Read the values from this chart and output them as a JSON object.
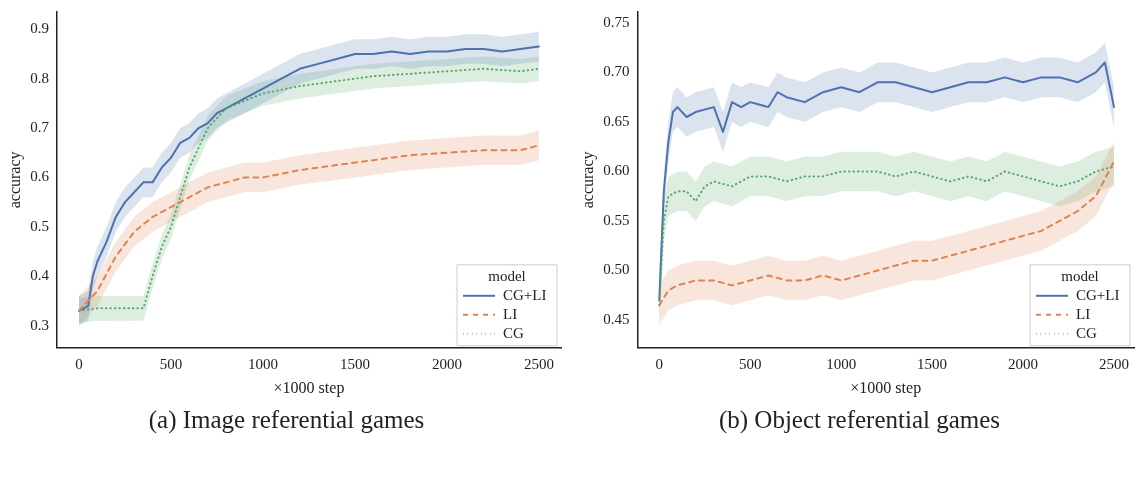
{
  "chart_data": [
    {
      "type": "line",
      "xlabel": "×1000 step",
      "ylabel": "accuracy",
      "legend_title": "model",
      "legend": "bottom right",
      "grid": false,
      "annotations": [
        "(a) Image referential games"
      ],
      "xlim": [
        -120,
        2620
      ],
      "ylim": [
        0.255,
        0.935
      ],
      "xticks": [
        0,
        500,
        1000,
        1500,
        2000,
        2500
      ],
      "yticks": [
        0.3,
        0.4,
        0.5,
        0.6,
        0.7,
        0.8,
        0.9
      ],
      "series": [
        {
          "name": "CG+LI",
          "color": "#4c72b0",
          "line_style": "solid",
          "x": [
            0,
            50,
            75,
            100,
            150,
            200,
            250,
            300,
            350,
            400,
            450,
            500,
            550,
            600,
            650,
            700,
            750,
            800,
            900,
            1000,
            1100,
            1200,
            1300,
            1400,
            1500,
            1600,
            1700,
            1800,
            1900,
            2000,
            2100,
            2200,
            2300,
            2400,
            2500
          ],
          "values": [
            0.33,
            0.34,
            0.4,
            0.43,
            0.47,
            0.52,
            0.55,
            0.57,
            0.59,
            0.59,
            0.62,
            0.64,
            0.67,
            0.68,
            0.7,
            0.71,
            0.73,
            0.74,
            0.76,
            0.78,
            0.8,
            0.82,
            0.83,
            0.84,
            0.85,
            0.85,
            0.855,
            0.85,
            0.855,
            0.855,
            0.86,
            0.86,
            0.855,
            0.86,
            0.865
          ],
          "lower": [
            0.3,
            0.31,
            0.37,
            0.4,
            0.44,
            0.49,
            0.52,
            0.54,
            0.56,
            0.56,
            0.59,
            0.61,
            0.64,
            0.65,
            0.67,
            0.68,
            0.7,
            0.71,
            0.73,
            0.75,
            0.77,
            0.79,
            0.8,
            0.81,
            0.82,
            0.82,
            0.825,
            0.82,
            0.825,
            0.825,
            0.83,
            0.83,
            0.825,
            0.83,
            0.835
          ],
          "upper": [
            0.36,
            0.37,
            0.43,
            0.46,
            0.5,
            0.55,
            0.58,
            0.6,
            0.62,
            0.62,
            0.65,
            0.67,
            0.7,
            0.71,
            0.73,
            0.74,
            0.76,
            0.77,
            0.79,
            0.81,
            0.83,
            0.85,
            0.86,
            0.87,
            0.88,
            0.88,
            0.885,
            0.88,
            0.885,
            0.885,
            0.89,
            0.89,
            0.885,
            0.89,
            0.895
          ]
        },
        {
          "name": "LI",
          "color": "#dd8452",
          "line_style": "dashed",
          "x": [
            0,
            100,
            200,
            300,
            400,
            500,
            600,
            700,
            800,
            900,
            1000,
            1200,
            1400,
            1600,
            1800,
            2000,
            2200,
            2400,
            2500
          ],
          "values": [
            0.33,
            0.37,
            0.44,
            0.49,
            0.52,
            0.54,
            0.56,
            0.58,
            0.59,
            0.6,
            0.6,
            0.615,
            0.625,
            0.635,
            0.645,
            0.65,
            0.655,
            0.655,
            0.665
          ],
          "lower": [
            0.3,
            0.34,
            0.41,
            0.46,
            0.49,
            0.51,
            0.53,
            0.55,
            0.56,
            0.57,
            0.57,
            0.585,
            0.595,
            0.605,
            0.615,
            0.62,
            0.625,
            0.625,
            0.635
          ],
          "upper": [
            0.36,
            0.4,
            0.47,
            0.52,
            0.55,
            0.57,
            0.59,
            0.61,
            0.62,
            0.63,
            0.63,
            0.645,
            0.655,
            0.665,
            0.675,
            0.68,
            0.685,
            0.685,
            0.695
          ]
        },
        {
          "name": "CG",
          "color": "#55a868",
          "line_style": "dotted",
          "x": [
            0,
            100,
            200,
            300,
            350,
            400,
            450,
            500,
            550,
            600,
            650,
            700,
            750,
            800,
            900,
            1000,
            1200,
            1400,
            1600,
            1800,
            2000,
            2200,
            2400,
            2500
          ],
          "values": [
            0.33,
            0.335,
            0.335,
            0.335,
            0.335,
            0.4,
            0.46,
            0.5,
            0.56,
            0.62,
            0.66,
            0.7,
            0.72,
            0.74,
            0.755,
            0.77,
            0.785,
            0.795,
            0.805,
            0.81,
            0.815,
            0.82,
            0.815,
            0.82
          ],
          "lower": [
            0.305,
            0.31,
            0.31,
            0.31,
            0.31,
            0.375,
            0.435,
            0.475,
            0.535,
            0.595,
            0.635,
            0.675,
            0.695,
            0.715,
            0.73,
            0.745,
            0.76,
            0.77,
            0.78,
            0.785,
            0.79,
            0.795,
            0.79,
            0.795
          ],
          "upper": [
            0.355,
            0.36,
            0.36,
            0.36,
            0.36,
            0.425,
            0.485,
            0.525,
            0.585,
            0.645,
            0.685,
            0.725,
            0.745,
            0.765,
            0.78,
            0.795,
            0.81,
            0.82,
            0.83,
            0.835,
            0.84,
            0.845,
            0.84,
            0.845
          ]
        }
      ]
    },
    {
      "type": "line",
      "xlabel": "×1000 step",
      "ylabel": "accuracy",
      "legend_title": "model",
      "legend": "bottom right",
      "grid": false,
      "annotations": [
        "(b) Object referential games"
      ],
      "xlim": [
        -120,
        2610
      ],
      "ylim": [
        0.422,
        0.761
      ],
      "xticks": [
        0,
        500,
        1000,
        1500,
        2000,
        2500
      ],
      "yticks": [
        0.45,
        {
          "value": 0.5,
          "label": "0.50"
        },
        0.55,
        {
          "value": 0.6,
          "label": "0.60"
        },
        0.65,
        {
          "value": 0.7,
          "label": "0.70"
        },
        0.75
      ],
      "series": [
        {
          "name": "CG+LI",
          "color": "#4c72b0",
          "line_style": "solid",
          "x": [
            0,
            25,
            50,
            75,
            100,
            150,
            200,
            300,
            350,
            400,
            450,
            500,
            600,
            650,
            700,
            800,
            900,
            1000,
            1100,
            1200,
            1300,
            1400,
            1500,
            1600,
            1700,
            1800,
            1900,
            2000,
            2100,
            2200,
            2300,
            2400,
            2450,
            2500
          ],
          "values": [
            0.47,
            0.58,
            0.63,
            0.66,
            0.665,
            0.655,
            0.66,
            0.665,
            0.64,
            0.67,
            0.665,
            0.67,
            0.665,
            0.68,
            0.675,
            0.67,
            0.68,
            0.685,
            0.68,
            0.69,
            0.69,
            0.685,
            0.68,
            0.685,
            0.69,
            0.69,
            0.695,
            0.69,
            0.695,
            0.695,
            0.69,
            0.7,
            0.71,
            0.665
          ],
          "lower": [
            0.45,
            0.56,
            0.61,
            0.64,
            0.645,
            0.635,
            0.64,
            0.645,
            0.62,
            0.65,
            0.645,
            0.65,
            0.645,
            0.66,
            0.655,
            0.65,
            0.66,
            0.665,
            0.66,
            0.67,
            0.67,
            0.665,
            0.66,
            0.665,
            0.67,
            0.67,
            0.675,
            0.67,
            0.675,
            0.675,
            0.67,
            0.68,
            0.69,
            0.645
          ],
          "upper": [
            0.49,
            0.6,
            0.65,
            0.68,
            0.685,
            0.675,
            0.68,
            0.685,
            0.66,
            0.69,
            0.685,
            0.69,
            0.685,
            0.7,
            0.695,
            0.69,
            0.7,
            0.705,
            0.7,
            0.71,
            0.71,
            0.705,
            0.7,
            0.705,
            0.71,
            0.71,
            0.715,
            0.71,
            0.715,
            0.715,
            0.71,
            0.72,
            0.73,
            0.685
          ]
        },
        {
          "name": "LI",
          "color": "#dd8452",
          "line_style": "dashed",
          "x": [
            0,
            50,
            100,
            200,
            300,
            400,
            500,
            600,
            700,
            800,
            900,
            1000,
            1100,
            1200,
            1300,
            1400,
            1500,
            1600,
            1700,
            1800,
            1900,
            2000,
            2100,
            2200,
            2300,
            2400,
            2500
          ],
          "values": [
            0.465,
            0.48,
            0.485,
            0.49,
            0.49,
            0.485,
            0.49,
            0.495,
            0.49,
            0.49,
            0.495,
            0.49,
            0.495,
            0.5,
            0.505,
            0.51,
            0.51,
            0.515,
            0.52,
            0.525,
            0.53,
            0.535,
            0.54,
            0.55,
            0.56,
            0.575,
            0.61
          ],
          "lower": [
            0.445,
            0.46,
            0.465,
            0.47,
            0.47,
            0.465,
            0.47,
            0.475,
            0.47,
            0.47,
            0.475,
            0.47,
            0.475,
            0.48,
            0.485,
            0.49,
            0.49,
            0.495,
            0.5,
            0.505,
            0.51,
            0.515,
            0.52,
            0.53,
            0.54,
            0.555,
            0.59
          ],
          "upper": [
            0.485,
            0.5,
            0.505,
            0.51,
            0.51,
            0.505,
            0.51,
            0.515,
            0.51,
            0.51,
            0.515,
            0.51,
            0.515,
            0.52,
            0.525,
            0.53,
            0.53,
            0.535,
            0.54,
            0.545,
            0.55,
            0.555,
            0.56,
            0.57,
            0.58,
            0.595,
            0.63
          ]
        },
        {
          "name": "CG",
          "color": "#55a868",
          "line_style": "dotted",
          "x": [
            0,
            25,
            50,
            100,
            150,
            200,
            250,
            300,
            400,
            500,
            600,
            700,
            800,
            900,
            1000,
            1100,
            1200,
            1300,
            1400,
            1500,
            1600,
            1700,
            1800,
            1900,
            2000,
            2100,
            2200,
            2300,
            2400,
            2500
          ],
          "values": [
            0.465,
            0.55,
            0.575,
            0.58,
            0.58,
            0.57,
            0.585,
            0.59,
            0.585,
            0.595,
            0.595,
            0.59,
            0.595,
            0.595,
            0.6,
            0.6,
            0.6,
            0.595,
            0.6,
            0.595,
            0.59,
            0.595,
            0.59,
            0.6,
            0.595,
            0.59,
            0.585,
            0.59,
            0.6,
            0.605
          ],
          "lower": [
            0.445,
            0.53,
            0.555,
            0.56,
            0.56,
            0.55,
            0.565,
            0.57,
            0.565,
            0.575,
            0.575,
            0.57,
            0.575,
            0.575,
            0.58,
            0.58,
            0.58,
            0.575,
            0.58,
            0.575,
            0.57,
            0.575,
            0.57,
            0.58,
            0.575,
            0.57,
            0.565,
            0.57,
            0.58,
            0.585
          ],
          "upper": [
            0.485,
            0.57,
            0.595,
            0.6,
            0.6,
            0.59,
            0.605,
            0.61,
            0.605,
            0.615,
            0.615,
            0.61,
            0.615,
            0.615,
            0.62,
            0.62,
            0.62,
            0.615,
            0.62,
            0.615,
            0.61,
            0.615,
            0.61,
            0.62,
            0.615,
            0.61,
            0.605,
            0.61,
            0.62,
            0.625
          ]
        }
      ]
    }
  ]
}
